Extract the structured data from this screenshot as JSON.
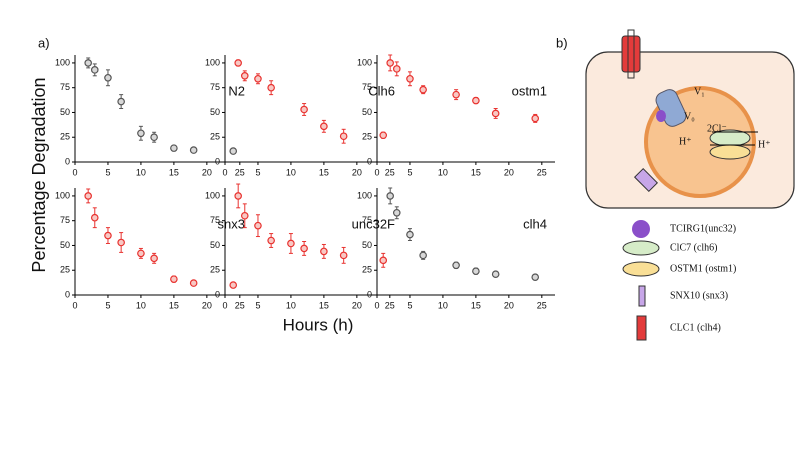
{
  "figure": {
    "panel_a": "a)",
    "panel_b": "b)",
    "ylabel": "Percentage Degradation",
    "xlabel": "Hours (h)"
  },
  "chart_data": [
    {
      "type": "scatter",
      "title": "N2",
      "color": "#555555",
      "fill": "#d8d8d8",
      "x": [
        2,
        3,
        5,
        7,
        10,
        12,
        15,
        18,
        24
      ],
      "values": [
        100,
        93,
        85,
        61,
        29,
        25,
        14,
        12,
        11
      ],
      "errors": [
        5,
        6,
        8,
        7,
        7,
        5,
        2,
        2,
        2
      ],
      "xlim": [
        0,
        27
      ],
      "ylim": [
        0,
        108
      ],
      "xticks": [
        0,
        5,
        10,
        15,
        20,
        25
      ],
      "yticks": [
        0,
        25,
        50,
        75,
        100
      ]
    },
    {
      "type": "scatter",
      "title": "Clh6",
      "color": "#e8322f",
      "fill": "#f8c8c4",
      "x": [
        2,
        3,
        5,
        7,
        12,
        15,
        18,
        24
      ],
      "values": [
        100,
        87,
        84,
        75,
        53,
        36,
        26,
        27
      ],
      "errors": [
        3,
        5,
        5,
        7,
        6,
        6,
        7,
        3
      ],
      "xlim": [
        0,
        27
      ],
      "ylim": [
        0,
        108
      ],
      "xticks": [
        0,
        5,
        10,
        15,
        20,
        25
      ],
      "yticks": [
        0,
        25,
        50,
        75,
        100
      ]
    },
    {
      "type": "scatter",
      "title": "ostm1",
      "color": "#e8322f",
      "fill": "#f8c8c4",
      "x": [
        2,
        3,
        5,
        7,
        12,
        15,
        18,
        24
      ],
      "values": [
        100,
        94,
        84,
        73,
        68,
        62,
        49,
        44
      ],
      "errors": [
        8,
        7,
        7,
        4,
        5,
        3,
        5,
        4
      ],
      "xlim": [
        0,
        27
      ],
      "ylim": [
        0,
        108
      ],
      "xticks": [
        0,
        5,
        10,
        15,
        20,
        25
      ],
      "yticks": [
        0,
        25,
        50,
        75,
        100
      ]
    },
    {
      "type": "scatter",
      "title": "snx3",
      "color": "#e8322f",
      "fill": "#f8c8c4",
      "x": [
        2,
        3,
        5,
        7,
        10,
        12,
        15,
        18,
        24
      ],
      "values": [
        100,
        78,
        60,
        53,
        42,
        37,
        16,
        12,
        10
      ],
      "errors": [
        7,
        10,
        8,
        10,
        5,
        5,
        3,
        2,
        2
      ],
      "xlim": [
        0,
        27
      ],
      "ylim": [
        0,
        108
      ],
      "xticks": [
        0,
        5,
        10,
        15,
        20,
        25
      ],
      "yticks": [
        0,
        25,
        50,
        75,
        100
      ]
    },
    {
      "type": "scatter",
      "title": "unc32F",
      "color": "#e8322f",
      "fill": "#f8c8c4",
      "x": [
        2,
        3,
        5,
        7,
        10,
        12,
        15,
        18,
        24
      ],
      "values": [
        100,
        80,
        70,
        55,
        52,
        47,
        44,
        40,
        35
      ],
      "errors": [
        12,
        12,
        11,
        7,
        10,
        7,
        7,
        8,
        7
      ],
      "xlim": [
        0,
        27
      ],
      "ylim": [
        0,
        108
      ],
      "xticks": [
        0,
        5,
        10,
        15,
        20,
        25
      ],
      "yticks": [
        0,
        25,
        50,
        75,
        100
      ]
    },
    {
      "type": "scatter",
      "title": "clh4",
      "color": "#555555",
      "fill": "#d8d8d8",
      "x": [
        2,
        3,
        5,
        7,
        12,
        15,
        18,
        24
      ],
      "values": [
        100,
        83,
        61,
        40,
        30,
        24,
        21,
        18
      ],
      "errors": [
        8,
        6,
        6,
        4,
        3,
        3,
        2,
        2
      ],
      "xlim": [
        0,
        27
      ],
      "ylim": [
        0,
        108
      ],
      "xticks": [
        0,
        5,
        10,
        15,
        20,
        25
      ],
      "yticks": [
        0,
        25,
        50,
        75,
        100
      ]
    }
  ],
  "diagram": {
    "v1": "V₁",
    "v0": "V₀",
    "h_left": "H⁺",
    "h_right": "H⁺",
    "cl": "2Cl⁻",
    "legend": [
      "TCIRG1(unc32)",
      "ClC7 (clh6)",
      "OSTM1 (ostm1)",
      "SNX10 (snx3)",
      "CLC1 (clh4)"
    ]
  }
}
